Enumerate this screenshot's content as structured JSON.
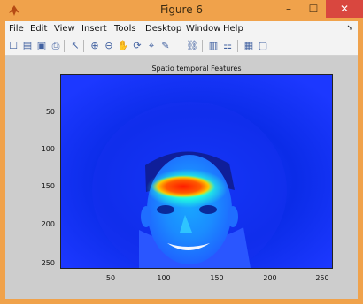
{
  "window": {
    "title": "Figure 6",
    "minimize_glyph": "–",
    "maximize_glyph": "☐",
    "close_glyph": "✕"
  },
  "menu": {
    "items": [
      "File",
      "Edit",
      "View",
      "Insert",
      "Tools",
      "Desktop",
      "Window",
      "Help"
    ],
    "overflow_glyph": "➘"
  },
  "toolbar": {
    "tools": [
      {
        "name": "new-figure-icon",
        "glyph": "☐"
      },
      {
        "name": "open-file-icon",
        "glyph": "▤"
      },
      {
        "name": "save-icon",
        "glyph": "▣"
      },
      {
        "name": "print-icon",
        "glyph": "⎙"
      },
      {
        "name": "edit-plot-arrow-icon",
        "glyph": "↖"
      },
      {
        "name": "zoom-in-icon",
        "glyph": "⊕"
      },
      {
        "name": "zoom-out-icon",
        "glyph": "⊖"
      },
      {
        "name": "pan-hand-icon",
        "glyph": "✋"
      },
      {
        "name": "rotate-3d-icon",
        "glyph": "⟳"
      },
      {
        "name": "data-cursor-icon",
        "glyph": "⌖"
      },
      {
        "name": "brush-icon",
        "glyph": "✎"
      },
      {
        "name": "link-plot-icon",
        "glyph": "⛓"
      },
      {
        "name": "colorbar-icon",
        "glyph": "▥"
      },
      {
        "name": "legend-icon",
        "glyph": "☷"
      },
      {
        "name": "hide-plot-tools-icon",
        "glyph": "▦"
      },
      {
        "name": "show-plot-tools-icon",
        "glyph": "▢"
      }
    ]
  },
  "plot": {
    "title": "Spatio temporal Features",
    "y_ticks": [
      "50",
      "100",
      "150",
      "200",
      "250"
    ],
    "x_ticks": [
      "50",
      "100",
      "150",
      "200",
      "250"
    ],
    "colormap": "jet",
    "background_color": "#1c38ff",
    "hot_color": "#ff2a00"
  }
}
